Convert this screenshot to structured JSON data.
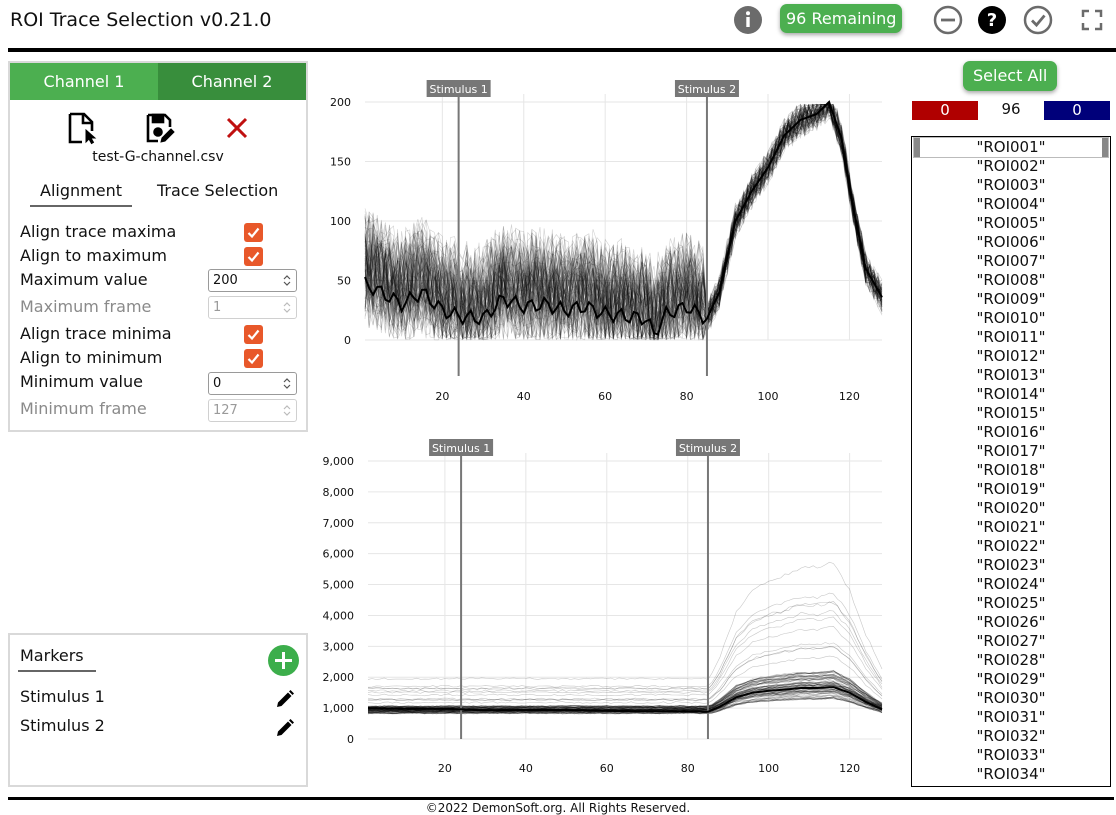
{
  "app": {
    "title": "ROI Trace Selection v0.21.0"
  },
  "header": {
    "remaining_label": "96 Remaining",
    "icons": [
      "info-icon",
      "reject-icon",
      "help-icon",
      "accept-icon",
      "fullscreen-icon"
    ]
  },
  "control_panel": {
    "channel_tabs": [
      "Channel 1",
      "Channel 2"
    ],
    "file_name": "test-G-channel.csv",
    "tool_icons": [
      "open-file-icon",
      "save-file-icon",
      "clear-file-icon"
    ],
    "sub_tabs": [
      "Alignment",
      "Trace Selection"
    ],
    "options": {
      "align_trace_maxima": {
        "label": "Align trace maxima",
        "checked": true
      },
      "align_to_maximum": {
        "label": "Align to maximum",
        "checked": true
      },
      "maximum_value": {
        "label": "Maximum value",
        "value": "200"
      },
      "maximum_frame": {
        "label": "Maximum frame",
        "value": "1",
        "disabled": true
      },
      "align_trace_minima": {
        "label": "Align trace minima",
        "checked": true
      },
      "align_to_minimum": {
        "label": "Align to minimum",
        "checked": true
      },
      "minimum_value": {
        "label": "Minimum value",
        "value": "0"
      },
      "minimum_frame": {
        "label": "Minimum frame",
        "value": "127",
        "disabled": true
      }
    }
  },
  "markers": {
    "title": "Markers",
    "items": [
      {
        "name": "Stimulus 1"
      },
      {
        "name": "Stimulus 2"
      }
    ]
  },
  "roi_panel": {
    "select_all_label": "Select All",
    "rejected_count": "0",
    "pending_count": "96",
    "accepted_count": "0",
    "items": [
      "\"ROI001\"",
      "\"ROI002\"",
      "\"ROI003\"",
      "\"ROI004\"",
      "\"ROI005\"",
      "\"ROI006\"",
      "\"ROI007\"",
      "\"ROI008\"",
      "\"ROI009\"",
      "\"ROI010\"",
      "\"ROI011\"",
      "\"ROI012\"",
      "\"ROI013\"",
      "\"ROI014\"",
      "\"ROI015\"",
      "\"ROI016\"",
      "\"ROI017\"",
      "\"ROI018\"",
      "\"ROI019\"",
      "\"ROI020\"",
      "\"ROI021\"",
      "\"ROI022\"",
      "\"ROI023\"",
      "\"ROI024\"",
      "\"ROI025\"",
      "\"ROI026\"",
      "\"ROI027\"",
      "\"ROI028\"",
      "\"ROI029\"",
      "\"ROI030\"",
      "\"ROI031\"",
      "\"ROI032\"",
      "\"ROI033\"",
      "\"ROI034\""
    ]
  },
  "colors": {
    "accent_green": "#4caf50",
    "dark_green": "#388e3c",
    "checkbox_orange": "#e8582a",
    "rejected_red": "#b00000",
    "accepted_blue": "#00007a"
  },
  "chart_data": [
    {
      "type": "line",
      "title": "",
      "xlabel": "",
      "ylabel": "",
      "xlim": [
        1,
        128
      ],
      "ylim": [
        0,
        200
      ],
      "x_ticks": [
        20,
        40,
        60,
        80,
        100,
        120
      ],
      "y_ticks": [
        0,
        50,
        100,
        150,
        200
      ],
      "x_tick_labels": [
        "20",
        "40",
        "60",
        "80",
        "100",
        "120"
      ],
      "y_tick_labels": [
        "0",
        "50",
        "100",
        "150",
        "200"
      ],
      "grid": true,
      "markers": [
        {
          "label": "Stimulus 1",
          "x": 24
        },
        {
          "label": "Stimulus 2",
          "x": 85
        }
      ],
      "background_traces": 96,
      "series": [
        {
          "x": [
            1,
            5,
            10,
            15,
            20,
            24,
            30,
            35,
            40,
            45,
            50,
            55,
            60,
            65,
            70,
            72,
            75,
            80,
            85,
            88,
            92,
            96,
            100,
            104,
            108,
            112,
            115,
            118,
            121,
            124,
            128
          ],
          "values": [
            47,
            40,
            30,
            40,
            25,
            20,
            18,
            35,
            28,
            30,
            25,
            28,
            22,
            20,
            18,
            5,
            22,
            28,
            18,
            40,
            100,
            125,
            145,
            172,
            185,
            190,
            200,
            170,
            110,
            60,
            36
          ]
        }
      ]
    },
    {
      "type": "line",
      "title": "",
      "xlabel": "",
      "ylabel": "",
      "xlim": [
        1,
        128
      ],
      "ylim": [
        0,
        9000
      ],
      "x_ticks": [
        20,
        40,
        60,
        80,
        100,
        120
      ],
      "y_ticks": [
        0,
        1000,
        2000,
        3000,
        4000,
        5000,
        6000,
        7000,
        8000,
        9000
      ],
      "x_tick_labels": [
        "20",
        "40",
        "60",
        "80",
        "100",
        "120"
      ],
      "y_tick_labels": [
        "0",
        "1,000",
        "2,000",
        "3,000",
        "4,000",
        "5,000",
        "6,000",
        "7,000",
        "8,000",
        "9,000"
      ],
      "grid": true,
      "markers": [
        {
          "label": "Stimulus 1",
          "x": 24
        },
        {
          "label": "Stimulus 2",
          "x": 85
        }
      ],
      "background_traces": 96,
      "series": [
        {
          "x": [
            1,
            10,
            20,
            24,
            30,
            40,
            50,
            60,
            70,
            80,
            85,
            88,
            92,
            96,
            100,
            104,
            108,
            112,
            116,
            120,
            124,
            128
          ],
          "values": [
            1000,
            980,
            980,
            960,
            930,
            940,
            940,
            910,
            900,
            900,
            880,
            1050,
            1350,
            1500,
            1560,
            1600,
            1650,
            1650,
            1680,
            1500,
            1200,
            960
          ]
        }
      ]
    }
  ]
}
